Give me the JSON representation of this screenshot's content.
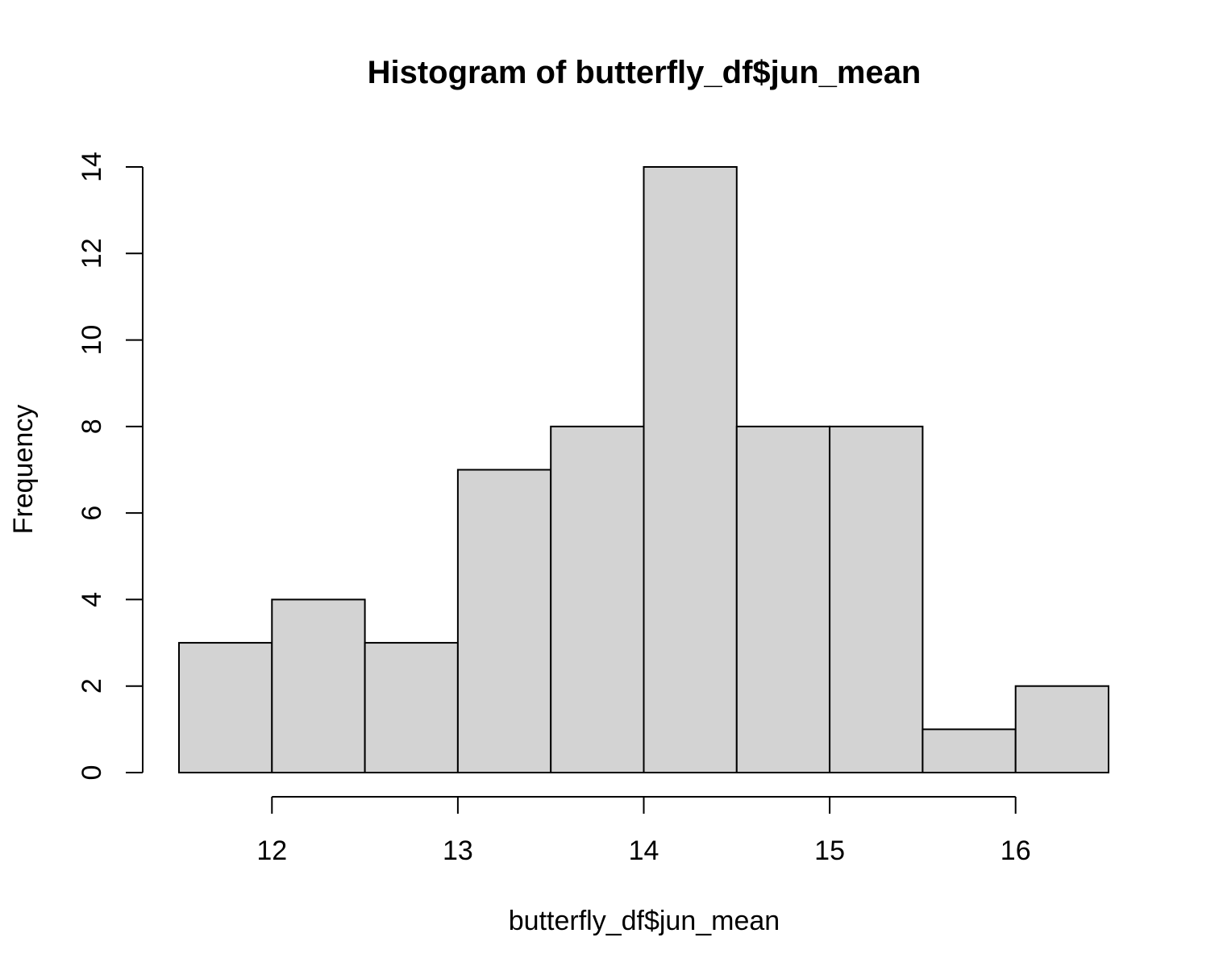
{
  "chart_data": {
    "type": "bar",
    "subtype": "histogram",
    "title": "Histogram of butterfly_df$jun_mean",
    "xlabel": "butterfly_df$jun_mean",
    "ylabel": "Frequency",
    "bins": [
      {
        "start": 11.5,
        "end": 12.0,
        "count": 3
      },
      {
        "start": 12.0,
        "end": 12.5,
        "count": 4
      },
      {
        "start": 12.5,
        "end": 13.0,
        "count": 3
      },
      {
        "start": 13.0,
        "end": 13.5,
        "count": 7
      },
      {
        "start": 13.5,
        "end": 14.0,
        "count": 8
      },
      {
        "start": 14.0,
        "end": 14.5,
        "count": 14
      },
      {
        "start": 14.5,
        "end": 15.0,
        "count": 8
      },
      {
        "start": 15.0,
        "end": 15.5,
        "count": 8
      },
      {
        "start": 15.5,
        "end": 16.0,
        "count": 1
      },
      {
        "start": 16.0,
        "end": 16.5,
        "count": 2
      }
    ],
    "xlim": [
      11.5,
      16.5
    ],
    "ylim": [
      0,
      14
    ],
    "x_ticks": [
      12,
      13,
      14,
      15,
      16
    ],
    "y_ticks": [
      0,
      2,
      4,
      6,
      8,
      10,
      12,
      14
    ],
    "grid": false,
    "legend": "none",
    "colors": {
      "bar_fill": "#d3d3d3",
      "bar_stroke": "#000000",
      "background": "#ffffff"
    }
  }
}
